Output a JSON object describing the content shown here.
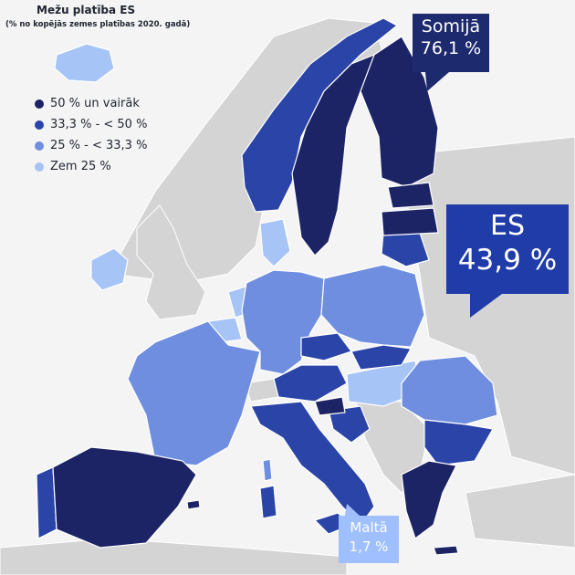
{
  "title": "Mežu platība ES",
  "subtitle": "(% no kopējās zemes platības 2020. gadā)",
  "legend": [
    {
      "label": "50 % un vairāk",
      "color": "#1c2466"
    },
    {
      "label": "33,3 % - < 50 %",
      "color": "#2a44a8"
    },
    {
      "label": "25 % - < 33,3 %",
      "color": "#6f8ee0"
    },
    {
      "label": "Zem 25 %",
      "color": "#a6c4f6"
    }
  ],
  "callouts": {
    "finland": {
      "name": "Somijā",
      "value": "76,1 %"
    },
    "eu": {
      "name": "ES",
      "value": "43,9 %"
    },
    "malta": {
      "name": "Maltā",
      "value": "1,7 %"
    }
  },
  "colors": {
    "sea": "#f4f4f4",
    "non_eu_land": "#d4d4d4",
    "border": "#ffffff"
  }
}
